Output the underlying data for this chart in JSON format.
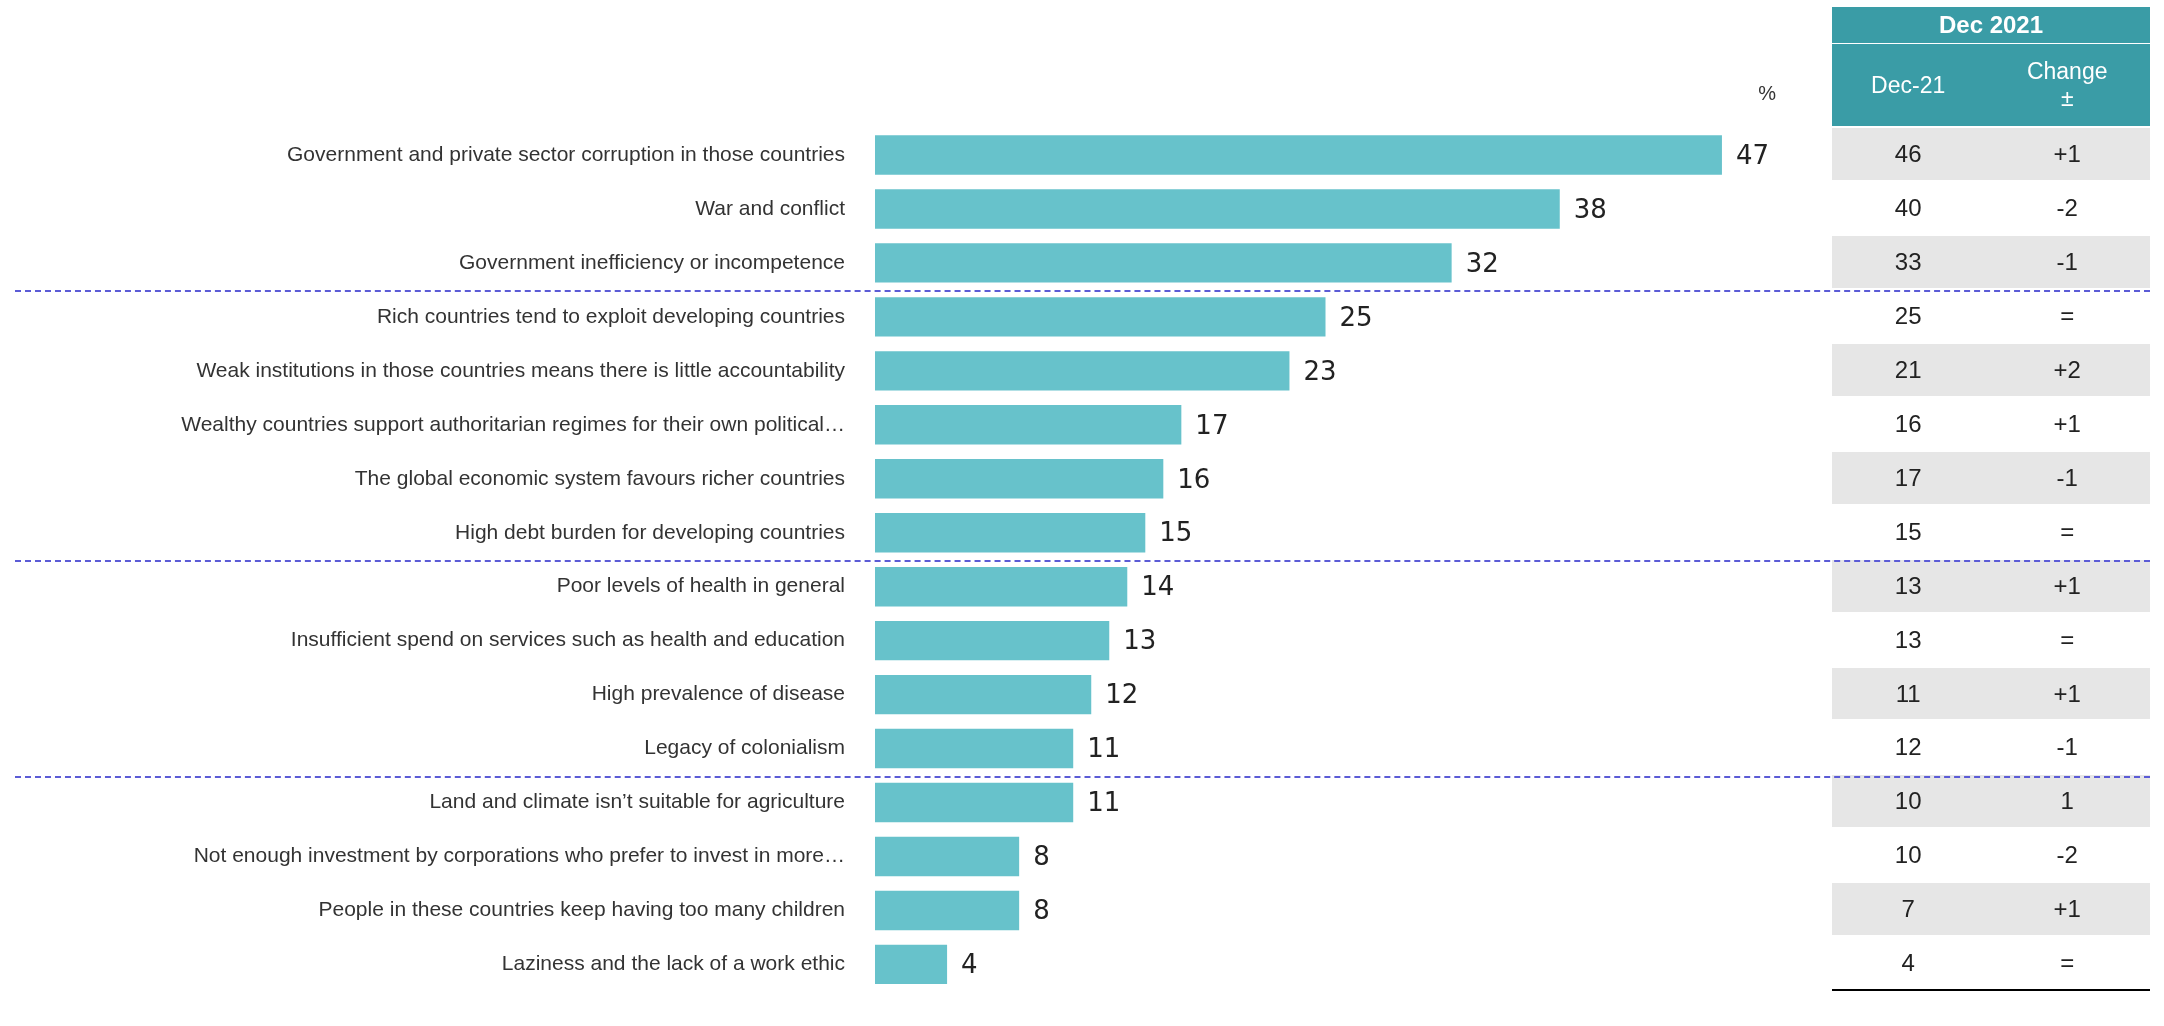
{
  "chart_data": [
    {
      "type": "bar",
      "orientation": "horizontal",
      "annotations": [
        "%"
      ],
      "color": "#67c2cb",
      "data_labels": true,
      "tick_labels": "y",
      "grid": false,
      "legend": false,
      "categories": [
        "Government and private sector corruption in those countries",
        "War and conflict",
        "Government inefficiency or incompetence",
        "Rich countries tend to exploit developing countries",
        "Weak institutions in those countries means there is little accountability",
        "Wealthy countries support authoritarian regimes for their own political…",
        "The global economic system favours richer countries",
        "High debt burden for developing countries",
        "Poor levels of health in general",
        "Insufficient spend on services such as health and education",
        "High prevalence of disease",
        "Legacy of colonialism",
        "Land and climate isn’t suitable for agriculture",
        "Not enough investment by corporations who prefer to invest in more…",
        "People in these countries keep having too many children",
        "Laziness and the lack of a work ethic"
      ],
      "values": [
        47,
        38,
        32,
        25,
        23,
        17,
        16,
        15,
        14,
        13,
        12,
        11,
        11,
        8,
        8,
        4
      ]
    },
    {
      "type": "other",
      "title": "Dec 2021",
      "color": "#3a9ca6",
      "categories": [
        "Dec-21",
        "Change\n±"
      ],
      "cell_labels": [
        [
          "46",
          "+1"
        ],
        [
          "40",
          "-2"
        ],
        [
          "33",
          "-1"
        ],
        [
          "25",
          "="
        ],
        [
          "21",
          "+2"
        ],
        [
          "16",
          "+1"
        ],
        [
          "17",
          "-1"
        ],
        [
          "15",
          "="
        ],
        [
          "13",
          "+1"
        ],
        [
          "13",
          "="
        ],
        [
          "11",
          "+1"
        ],
        [
          "12",
          "-1"
        ],
        [
          "10",
          "1"
        ],
        [
          "10",
          "-2"
        ],
        [
          "7",
          "+1"
        ],
        [
          "4",
          "="
        ]
      ]
    }
  ]
}
